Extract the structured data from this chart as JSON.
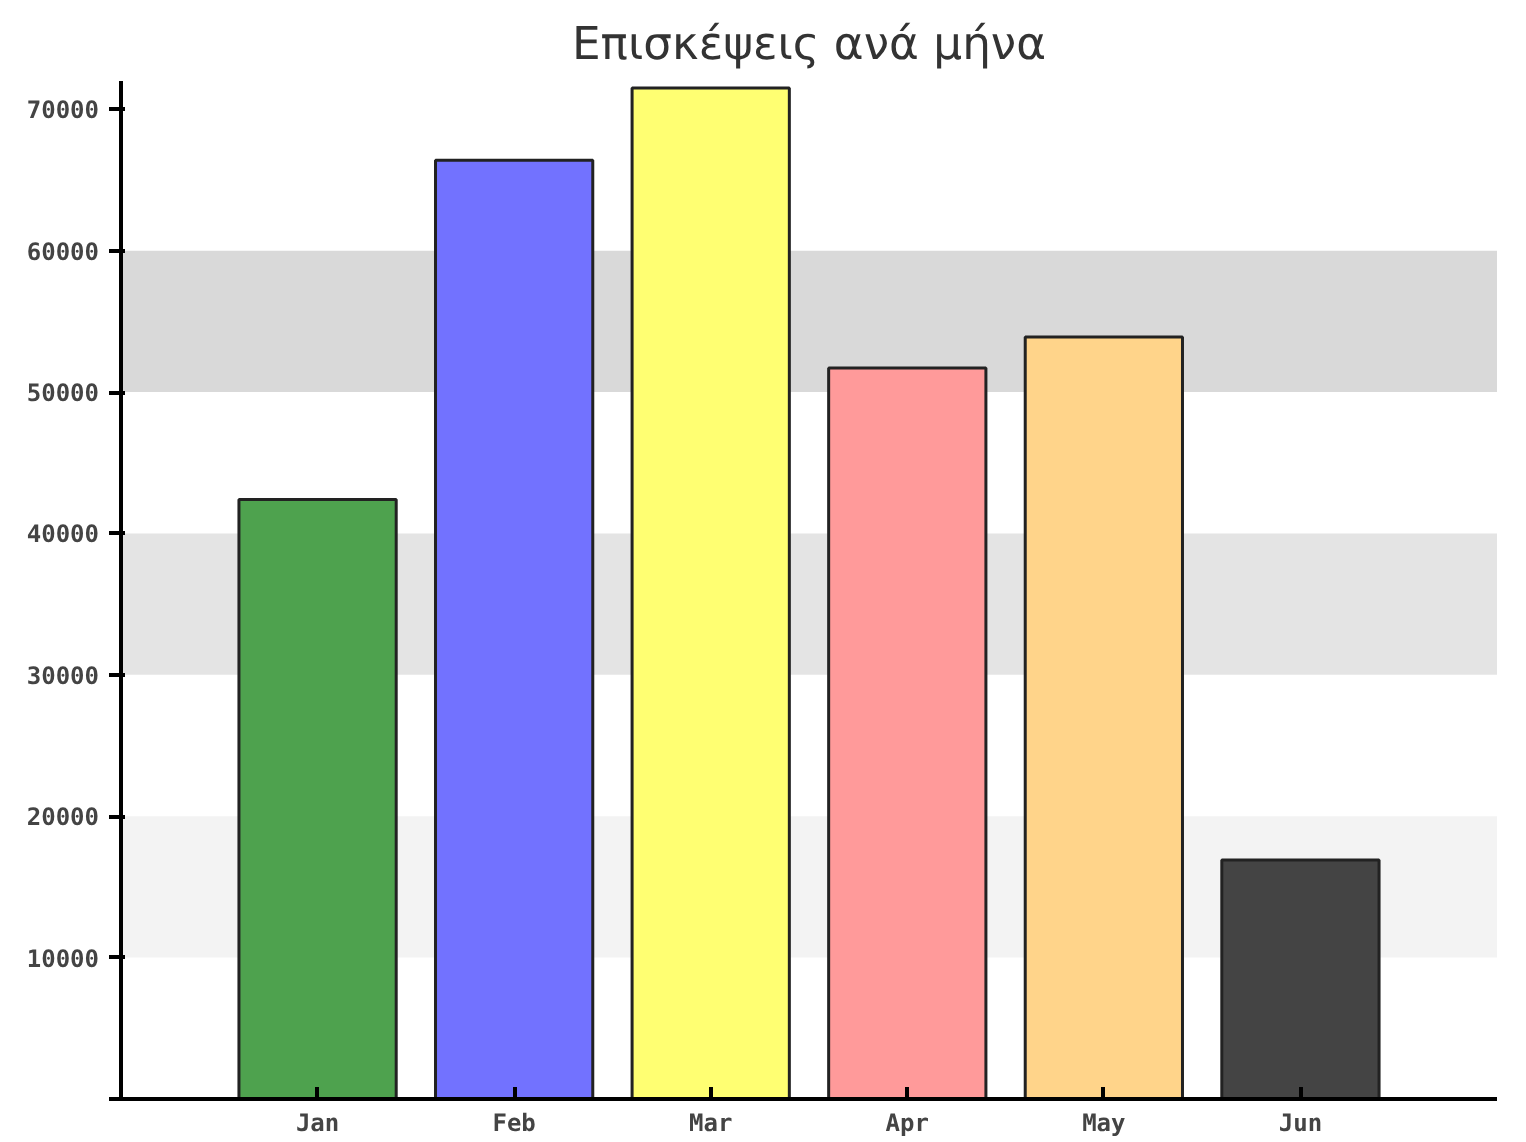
{
  "chart_data": {
    "type": "bar",
    "title": "Επισκέψεις ανά μήνα",
    "categories": [
      "Jan",
      "Feb",
      "Mar",
      "Apr",
      "May",
      "Jun"
    ],
    "values": [
      42400,
      66400,
      71500,
      51700,
      53900,
      16900
    ],
    "colors": [
      "#4ea24e",
      "#7272ff",
      "#ffff72",
      "#ff9a9a",
      "#ffd48a",
      "#444444"
    ],
    "ylim": [
      0,
      72000
    ],
    "yticks": [
      {
        "value": 0,
        "label": null
      },
      10000,
      20000,
      30000,
      40000,
      50000,
      60000,
      70000
    ],
    "bands": [
      {
        "axis": "y",
        "from": 10000,
        "to": 20000,
        "color": "#f3f3f3"
      },
      {
        "axis": "y",
        "from": 30000,
        "to": 40000,
        "color": "#e4e4e4"
      },
      {
        "axis": "y",
        "from": 50000,
        "to": 60000,
        "color": "#d9d9d9"
      }
    ],
    "grid": false
  }
}
